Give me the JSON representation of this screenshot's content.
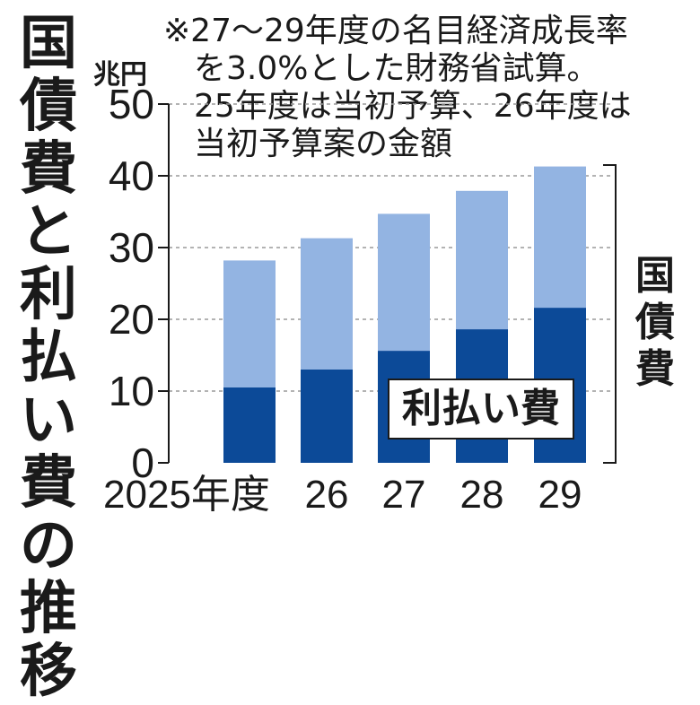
{
  "chart_data": {
    "type": "bar",
    "title": "国債費と利払い費の推移",
    "unit": "兆円",
    "note_lines": [
      "※27〜29年度の名目経済成長率",
      "を3.0%とした財務省試算。",
      "25年度は当初予算、26年度は",
      "当初予算案の金額"
    ],
    "categories": [
      "2025年度",
      "26",
      "27",
      "28",
      "29"
    ],
    "series": [
      {
        "name": "国債費",
        "values": [
          28.2,
          31.3,
          34.7,
          37.9,
          41.3
        ],
        "color": "#93b4e2"
      },
      {
        "name": "利払い費",
        "values": [
          10.5,
          13.0,
          15.6,
          18.6,
          21.6
        ],
        "color": "#0c4a98"
      }
    ],
    "yticks": [
      "0",
      "10",
      "20",
      "30",
      "40",
      "50"
    ],
    "ylim": [
      0,
      50
    ],
    "grid": "dashed-horizontal",
    "bracket_label": "国債費",
    "inner_label": "利払い費"
  }
}
